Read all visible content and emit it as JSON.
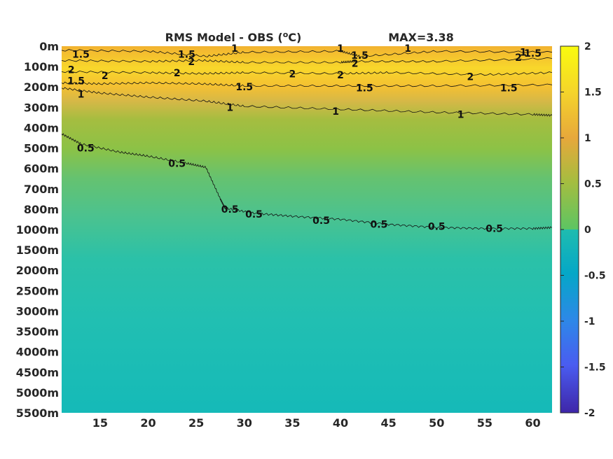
{
  "chart_data": {
    "type": "heatmap",
    "title": "RMS Model - OBS (",
    "title_unit_sup": "o",
    "title_unit": "C)",
    "max_label": "MAX=3.38",
    "colormap": "parula",
    "xlabel": "",
    "ylabel": "",
    "xlim": [
      11,
      62
    ],
    "x_ticks": [
      15,
      20,
      25,
      30,
      35,
      40,
      45,
      50,
      55,
      60
    ],
    "y_tick_labels": [
      "0m",
      "100m",
      "200m",
      "300m",
      "400m",
      "500m",
      "600m",
      "700m",
      "800m",
      "1000m",
      "1500m",
      "2000m",
      "2500m",
      "3000m",
      "3500m",
      "4000m",
      "4500m",
      "5000m",
      "5500m"
    ],
    "colorbar": {
      "range": [
        -2,
        2
      ],
      "ticks": [
        2,
        1.5,
        1,
        0.5,
        0,
        -0.5,
        -1,
        -1.5,
        -2
      ],
      "tick_labels": [
        "2",
        "1.5",
        "1",
        "0.5",
        "0",
        "-0.5",
        "-1",
        "-1.5",
        "-2"
      ]
    },
    "rms_profile_by_depth": [
      {
        "depth": "0m",
        "value": 1.3
      },
      {
        "depth": "100m",
        "value": 1.8
      },
      {
        "depth": "200m",
        "value": 1.4
      },
      {
        "depth": "300m",
        "value": 1.0
      },
      {
        "depth": "400m",
        "value": 0.85
      },
      {
        "depth": "500m",
        "value": 0.7
      },
      {
        "depth": "600m",
        "value": 0.6
      },
      {
        "depth": "700m",
        "value": 0.55
      },
      {
        "depth": "800m",
        "value": 0.5
      },
      {
        "depth": "1000m",
        "value": 0.45
      },
      {
        "depth": "1500m",
        "value": 0.3
      },
      {
        "depth": "2000m",
        "value": 0.2
      },
      {
        "depth": "2500m",
        "value": 0.18
      },
      {
        "depth": "3000m",
        "value": 0.16
      },
      {
        "depth": "3500m",
        "value": 0.15
      },
      {
        "depth": "4000m",
        "value": 0.14
      },
      {
        "depth": "4500m",
        "value": 0.13
      },
      {
        "depth": "5000m",
        "value": 0.12
      },
      {
        "depth": "5500m",
        "value": 0.12
      }
    ],
    "contour_labels": [
      {
        "text": "1.5",
        "x": 13,
        "depth_index": 0.4
      },
      {
        "text": "1.5",
        "x": 24,
        "depth_index": 0.4
      },
      {
        "text": "1",
        "x": 29,
        "depth_index": 0.1
      },
      {
        "text": "1",
        "x": 40,
        "depth_index": 0.1
      },
      {
        "text": "1.5",
        "x": 42,
        "depth_index": 0.45
      },
      {
        "text": "1",
        "x": 47,
        "depth_index": 0.1
      },
      {
        "text": "1",
        "x": 59,
        "depth_index": 0.3
      },
      {
        "text": "1.5",
        "x": 60,
        "depth_index": 0.35
      },
      {
        "text": "2",
        "x": 12,
        "depth_index": 1.15
      },
      {
        "text": "1.5",
        "x": 12.5,
        "depth_index": 1.7
      },
      {
        "text": "2",
        "x": 15.5,
        "depth_index": 1.45
      },
      {
        "text": "2",
        "x": 24.5,
        "depth_index": 0.75
      },
      {
        "text": "2",
        "x": 23,
        "depth_index": 1.3
      },
      {
        "text": "2",
        "x": 35,
        "depth_index": 1.35
      },
      {
        "text": "2",
        "x": 41.5,
        "depth_index": 0.85
      },
      {
        "text": "2",
        "x": 40,
        "depth_index": 1.4
      },
      {
        "text": "2",
        "x": 53.5,
        "depth_index": 1.5
      },
      {
        "text": "2",
        "x": 58.5,
        "depth_index": 0.55
      },
      {
        "text": "1.5",
        "x": 30,
        "depth_index": 2.0
      },
      {
        "text": "1.5",
        "x": 42.5,
        "depth_index": 2.05
      },
      {
        "text": "1.5",
        "x": 57.5,
        "depth_index": 2.05
      },
      {
        "text": "1",
        "x": 13,
        "depth_index": 2.35
      },
      {
        "text": "1",
        "x": 28.5,
        "depth_index": 3.0
      },
      {
        "text": "1",
        "x": 39.5,
        "depth_index": 3.2
      },
      {
        "text": "1",
        "x": 52.5,
        "depth_index": 3.35
      },
      {
        "text": "0.5",
        "x": 13.5,
        "depth_index": 5.0
      },
      {
        "text": "0.5",
        "x": 23,
        "depth_index": 5.75
      },
      {
        "text": "0.5",
        "x": 28.5,
        "depth_index": 8.0
      },
      {
        "text": "0.5",
        "x": 31,
        "depth_index": 8.25
      },
      {
        "text": "0.5",
        "x": 38,
        "depth_index": 8.55
      },
      {
        "text": "0.5",
        "x": 44,
        "depth_index": 8.75
      },
      {
        "text": "0.5",
        "x": 50,
        "depth_index": 8.85
      },
      {
        "text": "0.5",
        "x": 56,
        "depth_index": 8.95
      }
    ],
    "contour_lines": [
      {
        "level": 1.5,
        "points": [
          [
            11,
            0.2
          ],
          [
            20,
            0.25
          ],
          [
            26,
            0.5
          ],
          [
            30,
            0.3
          ],
          [
            40,
            0.25
          ],
          [
            42,
            0.5
          ],
          [
            50,
            0.25
          ],
          [
            62,
            0.3
          ]
        ]
      },
      {
        "level": 2,
        "points": [
          [
            11,
            0.7
          ],
          [
            20,
            0.75
          ],
          [
            25.5,
            0.7
          ],
          [
            30,
            0.8
          ],
          [
            40,
            0.8
          ],
          [
            41.5,
            0.75
          ],
          [
            50,
            0.75
          ],
          [
            62,
            0.6
          ]
        ]
      },
      {
        "level": 2,
        "points": [
          [
            11,
            1.25
          ],
          [
            20,
            1.3
          ],
          [
            25.5,
            1.35
          ],
          [
            30,
            1.3
          ],
          [
            40,
            1.35
          ],
          [
            45,
            1.3
          ],
          [
            55,
            1.4
          ],
          [
            62,
            1.3
          ]
        ]
      },
      {
        "level": 1.5,
        "points": [
          [
            11,
            1.8
          ],
          [
            15,
            1.85
          ],
          [
            20,
            1.8
          ],
          [
            25.5,
            1.85
          ],
          [
            30,
            1.95
          ],
          [
            40,
            1.95
          ],
          [
            50,
            1.95
          ],
          [
            62,
            1.9
          ]
        ]
      },
      {
        "level": 1,
        "points": [
          [
            11,
            2.05
          ],
          [
            15,
            2.3
          ],
          [
            20,
            2.5
          ],
          [
            26,
            2.7
          ],
          [
            30,
            2.95
          ],
          [
            40,
            3.1
          ],
          [
            50,
            3.25
          ],
          [
            60,
            3.35
          ],
          [
            62,
            3.4
          ]
        ]
      },
      {
        "level": 0.5,
        "points": [
          [
            11,
            4.3
          ],
          [
            13,
            4.8
          ],
          [
            17,
            5.2
          ],
          [
            20,
            5.4
          ],
          [
            24,
            5.75
          ],
          [
            26,
            5.95
          ],
          [
            27.5,
            7.5
          ],
          [
            28,
            7.95
          ],
          [
            31,
            8.2
          ],
          [
            35,
            8.35
          ],
          [
            40,
            8.5
          ],
          [
            45,
            8.75
          ],
          [
            50,
            8.9
          ],
          [
            55,
            8.95
          ],
          [
            60,
            8.95
          ],
          [
            62,
            8.9
          ]
        ]
      }
    ]
  }
}
